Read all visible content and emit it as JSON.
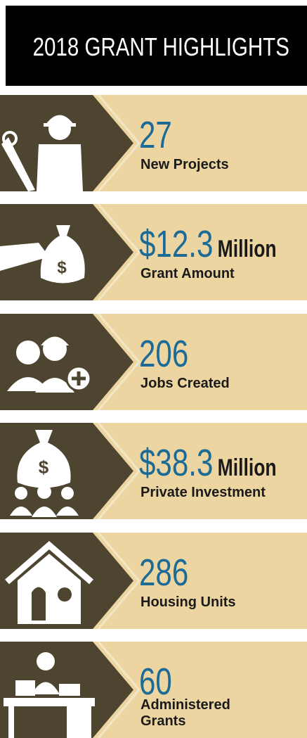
{
  "header": {
    "title": "2018 GRANT HIGHLIGHTS"
  },
  "items": [
    {
      "value": "27",
      "label": "New Projects"
    },
    {
      "value": "$12.3",
      "unit": "Million",
      "label": "Grant Amount"
    },
    {
      "value": "206",
      "label": "Jobs Created"
    },
    {
      "value": "$38.3",
      "unit": "Million",
      "label": "Private Investment"
    },
    {
      "value": "286",
      "label": "Housing Units"
    },
    {
      "value": "60",
      "label": "Administered Grants"
    }
  ]
}
